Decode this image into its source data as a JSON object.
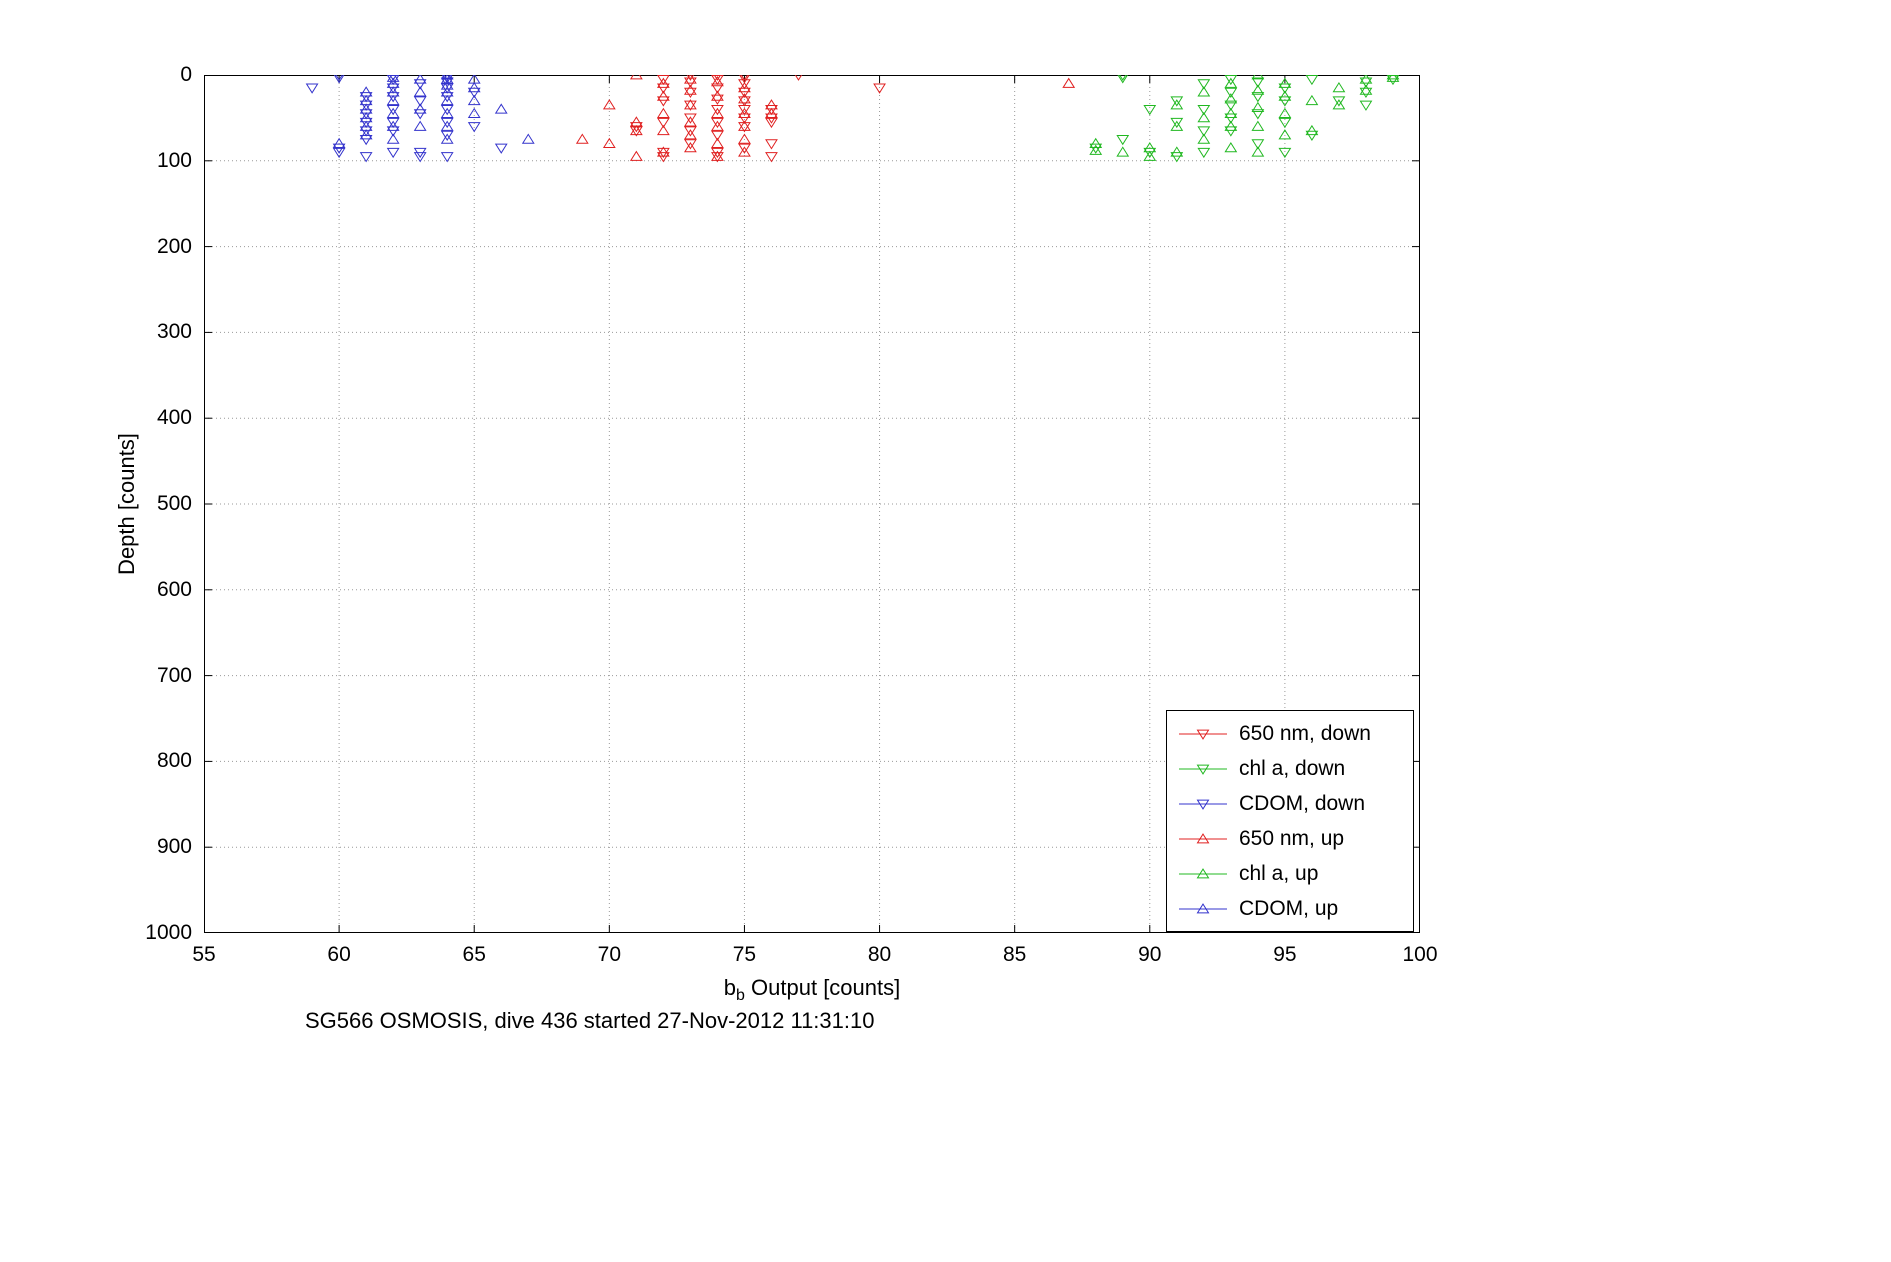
{
  "chart_data": {
    "type": "scatter",
    "title": "",
    "caption": "SG566 OSMOSIS, dive 436 started 27-Nov-2012 11:31:10",
    "xlabel": {
      "main": "b",
      "sub": "b",
      "rest": " Output [counts]"
    },
    "ylabel": "Depth [counts]",
    "xlim": [
      55,
      100
    ],
    "ylim": [
      0,
      1000
    ],
    "y_axis_reversed": true,
    "grid": true,
    "grid_style": "dotted",
    "legend_position": "lower right",
    "xticks": [
      55,
      60,
      65,
      70,
      75,
      80,
      85,
      90,
      95,
      100
    ],
    "yticks": [
      0,
      100,
      200,
      300,
      400,
      500,
      600,
      700,
      800,
      900,
      1000
    ],
    "series": [
      {
        "name": "650 nm, down",
        "color": "#e02020",
        "marker": "triangle-down",
        "points": [
          [
            71,
            60
          ],
          [
            71,
            65
          ],
          [
            72,
            5
          ],
          [
            72,
            15
          ],
          [
            72,
            30
          ],
          [
            72,
            55
          ],
          [
            72,
            90
          ],
          [
            72,
            95
          ],
          [
            73,
            0
          ],
          [
            73,
            8
          ],
          [
            73,
            20
          ],
          [
            73,
            35
          ],
          [
            73,
            50
          ],
          [
            73,
            65
          ],
          [
            73,
            80
          ],
          [
            74,
            0
          ],
          [
            74,
            5
          ],
          [
            74,
            15
          ],
          [
            74,
            28
          ],
          [
            74,
            40
          ],
          [
            74,
            55
          ],
          [
            74,
            70
          ],
          [
            74,
            90
          ],
          [
            74,
            95
          ],
          [
            75,
            0
          ],
          [
            75,
            3
          ],
          [
            75,
            10
          ],
          [
            75,
            20
          ],
          [
            75,
            30
          ],
          [
            75,
            40
          ],
          [
            75,
            50
          ],
          [
            75,
            60
          ],
          [
            75,
            85
          ],
          [
            76,
            40
          ],
          [
            76,
            50
          ],
          [
            76,
            55
          ],
          [
            76,
            80
          ],
          [
            76,
            95
          ],
          [
            77,
            0
          ],
          [
            80,
            15
          ]
        ]
      },
      {
        "name": "chl a, down",
        "color": "#20b820",
        "marker": "triangle-down",
        "points": [
          [
            88,
            85
          ],
          [
            89,
            0
          ],
          [
            89,
            3
          ],
          [
            89,
            75
          ],
          [
            90,
            40
          ],
          [
            90,
            90
          ],
          [
            91,
            30
          ],
          [
            91,
            55
          ],
          [
            91,
            95
          ],
          [
            92,
            10
          ],
          [
            92,
            40
          ],
          [
            92,
            65
          ],
          [
            92,
            90
          ],
          [
            93,
            5
          ],
          [
            93,
            20
          ],
          [
            93,
            35
          ],
          [
            93,
            50
          ],
          [
            93,
            65
          ],
          [
            94,
            8
          ],
          [
            94,
            25
          ],
          [
            94,
            45
          ],
          [
            94,
            80
          ],
          [
            95,
            15
          ],
          [
            95,
            30
          ],
          [
            95,
            55
          ],
          [
            95,
            90
          ],
          [
            96,
            5
          ],
          [
            96,
            70
          ],
          [
            97,
            30
          ],
          [
            98,
            8
          ],
          [
            98,
            20
          ],
          [
            98,
            35
          ],
          [
            99,
            5
          ]
        ]
      },
      {
        "name": "CDOM, down",
        "color": "#3333cc",
        "marker": "triangle-down",
        "points": [
          [
            59,
            15
          ],
          [
            60,
            0
          ],
          [
            60,
            3
          ],
          [
            60,
            85
          ],
          [
            60,
            90
          ],
          [
            61,
            25
          ],
          [
            61,
            35
          ],
          [
            61,
            45
          ],
          [
            61,
            55
          ],
          [
            61,
            65
          ],
          [
            61,
            75
          ],
          [
            61,
            95
          ],
          [
            62,
            0
          ],
          [
            62,
            5
          ],
          [
            62,
            15
          ],
          [
            62,
            25
          ],
          [
            62,
            40
          ],
          [
            62,
            55
          ],
          [
            62,
            65
          ],
          [
            62,
            90
          ],
          [
            63,
            10
          ],
          [
            63,
            30
          ],
          [
            63,
            45
          ],
          [
            63,
            90
          ],
          [
            63,
            95
          ],
          [
            64,
            0
          ],
          [
            64,
            3
          ],
          [
            64,
            8
          ],
          [
            64,
            15
          ],
          [
            64,
            25
          ],
          [
            64,
            40
          ],
          [
            64,
            55
          ],
          [
            64,
            70
          ],
          [
            64,
            95
          ],
          [
            65,
            20
          ],
          [
            65,
            60
          ],
          [
            66,
            85
          ]
        ]
      },
      {
        "name": "650 nm, up",
        "color": "#e02020",
        "marker": "triangle-up",
        "points": [
          [
            69,
            75
          ],
          [
            70,
            35
          ],
          [
            70,
            80
          ],
          [
            71,
            0
          ],
          [
            71,
            55
          ],
          [
            71,
            65
          ],
          [
            71,
            95
          ],
          [
            72,
            10
          ],
          [
            72,
            25
          ],
          [
            72,
            45
          ],
          [
            72,
            65
          ],
          [
            72,
            90
          ],
          [
            73,
            5
          ],
          [
            73,
            18
          ],
          [
            73,
            35
          ],
          [
            73,
            55
          ],
          [
            73,
            70
          ],
          [
            73,
            85
          ],
          [
            74,
            8
          ],
          [
            74,
            25
          ],
          [
            74,
            45
          ],
          [
            74,
            60
          ],
          [
            74,
            80
          ],
          [
            74,
            95
          ],
          [
            75,
            15
          ],
          [
            75,
            28
          ],
          [
            75,
            45
          ],
          [
            75,
            60
          ],
          [
            75,
            75
          ],
          [
            75,
            90
          ],
          [
            76,
            35
          ],
          [
            76,
            45
          ],
          [
            87,
            10
          ]
        ]
      },
      {
        "name": "chl a, up",
        "color": "#20b820",
        "marker": "triangle-up",
        "points": [
          [
            88,
            80
          ],
          [
            88,
            88
          ],
          [
            89,
            90
          ],
          [
            90,
            85
          ],
          [
            90,
            95
          ],
          [
            91,
            35
          ],
          [
            91,
            60
          ],
          [
            91,
            90
          ],
          [
            92,
            20
          ],
          [
            92,
            50
          ],
          [
            92,
            75
          ],
          [
            93,
            10
          ],
          [
            93,
            28
          ],
          [
            93,
            45
          ],
          [
            93,
            60
          ],
          [
            93,
            85
          ],
          [
            94,
            0
          ],
          [
            94,
            18
          ],
          [
            94,
            38
          ],
          [
            94,
            60
          ],
          [
            94,
            90
          ],
          [
            95,
            10
          ],
          [
            95,
            25
          ],
          [
            95,
            45
          ],
          [
            95,
            70
          ],
          [
            96,
            30
          ],
          [
            96,
            65
          ],
          [
            97,
            15
          ],
          [
            97,
            35
          ],
          [
            98,
            5
          ],
          [
            98,
            18
          ],
          [
            99,
            0
          ],
          [
            99,
            3
          ]
        ]
      },
      {
        "name": "CDOM, up",
        "color": "#3333cc",
        "marker": "triangle-up",
        "points": [
          [
            60,
            80
          ],
          [
            61,
            20
          ],
          [
            61,
            30
          ],
          [
            61,
            40
          ],
          [
            61,
            50
          ],
          [
            61,
            60
          ],
          [
            61,
            70
          ],
          [
            62,
            3
          ],
          [
            62,
            10
          ],
          [
            62,
            20
          ],
          [
            62,
            30
          ],
          [
            62,
            45
          ],
          [
            62,
            60
          ],
          [
            62,
            75
          ],
          [
            63,
            5
          ],
          [
            63,
            20
          ],
          [
            63,
            40
          ],
          [
            63,
            60
          ],
          [
            64,
            0
          ],
          [
            64,
            5
          ],
          [
            64,
            12
          ],
          [
            64,
            20
          ],
          [
            64,
            30
          ],
          [
            64,
            45
          ],
          [
            64,
            60
          ],
          [
            64,
            75
          ],
          [
            65,
            5
          ],
          [
            65,
            15
          ],
          [
            65,
            30
          ],
          [
            65,
            45
          ],
          [
            66,
            40
          ],
          [
            67,
            75
          ]
        ]
      }
    ]
  }
}
